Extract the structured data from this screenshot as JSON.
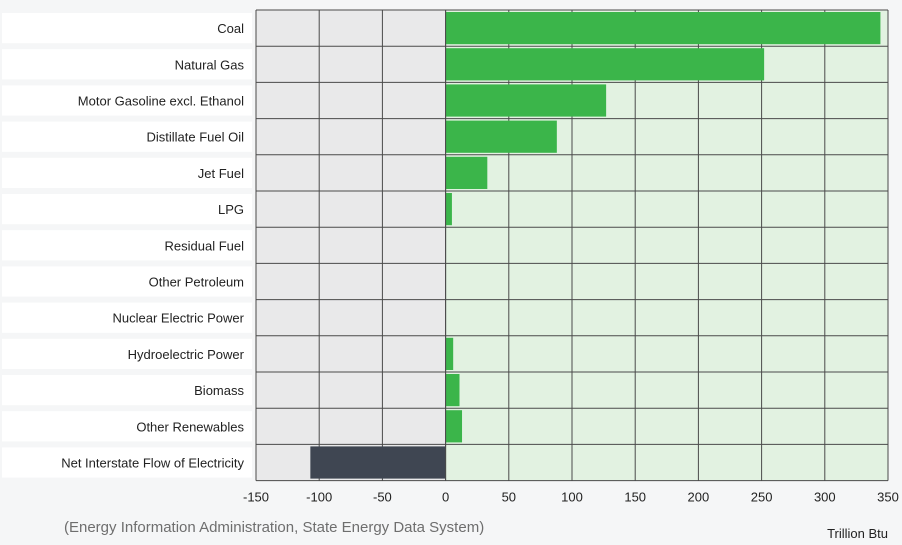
{
  "chart_data": {
    "type": "bar",
    "orientation": "horizontal",
    "categories": [
      "Coal",
      "Natural Gas",
      "Motor Gasoline excl. Ethanol",
      "Distillate Fuel Oil",
      "Jet Fuel",
      "LPG",
      "Residual Fuel",
      "Other Petroleum",
      "Nuclear Electric Power",
      "Hydroelectric Power",
      "Biomass",
      "Other Renewables",
      "Net Interstate Flow of Electricity"
    ],
    "values": [
      344,
      252,
      127,
      88,
      33,
      5,
      0.3,
      0.3,
      0,
      6,
      11,
      13,
      -107
    ],
    "xlim": [
      -150,
      350
    ],
    "xticks": [
      "-150",
      "-100",
      "-50",
      "0",
      "50",
      "100",
      "150",
      "200",
      "250",
      "300",
      "350"
    ],
    "xlabel": "Trillion Btu",
    "ylabel": "",
    "title": "",
    "grid": true,
    "colors": {
      "positive_bar": "#3bb54a",
      "negative_bar": "#3f4652",
      "negative_region": "#e9e9ea",
      "positive_region": "#e2f2e1",
      "grid": "#4a4a4a",
      "label_background": "#ffffff"
    }
  },
  "source_note": "(Energy Information Administration, State Energy Data System)"
}
